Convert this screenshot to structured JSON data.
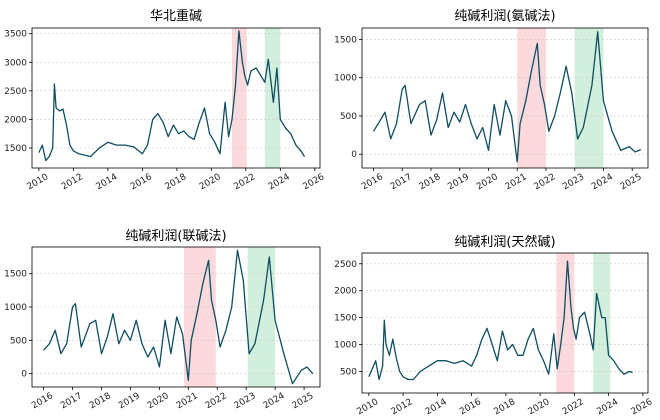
{
  "colors": {
    "series": "#0f4d63",
    "band_red": "#f9c9cf",
    "band_green": "#bfe8cf"
  },
  "chart_data": [
    {
      "type": "line",
      "title": "华北重碱",
      "xlim": [
        2009.6,
        2026.3
      ],
      "ylim": [
        1150,
        3600
      ],
      "xticks": [
        2010,
        2012,
        2014,
        2016,
        2018,
        2020,
        2022,
        2024,
        2026
      ],
      "yticks": [
        1500,
        2000,
        2500,
        3000,
        3500
      ],
      "grid": "y-dotted",
      "shaded_bands": [
        {
          "color": "red",
          "x": [
            2021.2,
            2022.05
          ]
        },
        {
          "color": "green",
          "x": [
            2023.1,
            2024.0
          ]
        }
      ],
      "series": [
        {
          "x": [
            2010.0,
            2010.2,
            2010.4,
            2010.6,
            2010.8,
            2010.9,
            2011.0,
            2011.2,
            2011.4,
            2011.6,
            2011.8,
            2012.0,
            2012.3,
            2012.6,
            2013.0,
            2013.5,
            2014.0,
            2014.5,
            2015.0,
            2015.5,
            2016.0,
            2016.3,
            2016.6,
            2016.9,
            2017.2,
            2017.5,
            2017.8,
            2018.1,
            2018.4,
            2018.7,
            2019.0,
            2019.3,
            2019.6,
            2019.9,
            2020.2,
            2020.5,
            2020.8,
            2021.0,
            2021.2,
            2021.4,
            2021.6,
            2021.8,
            2021.95,
            2022.1,
            2022.3,
            2022.6,
            2022.9,
            2023.1,
            2023.3,
            2023.6,
            2023.8,
            2024.0,
            2024.3,
            2024.6,
            2024.9,
            2025.2,
            2025.4
          ],
          "values": [
            1420,
            1550,
            1280,
            1350,
            1500,
            2620,
            2200,
            2150,
            2180,
            1900,
            1550,
            1450,
            1400,
            1380,
            1350,
            1500,
            1600,
            1550,
            1550,
            1520,
            1400,
            1550,
            2000,
            2100,
            1950,
            1700,
            1900,
            1750,
            1800,
            1700,
            1650,
            1950,
            2200,
            1750,
            1600,
            1400,
            2300,
            1700,
            2000,
            2600,
            3550,
            3000,
            2750,
            2600,
            2850,
            2900,
            2750,
            2650,
            3050,
            2300,
            2900,
            2000,
            1850,
            1750,
            1550,
            1450,
            1350
          ]
        }
      ]
    },
    {
      "type": "line",
      "title": "纯碱利润(氨碱法)",
      "xlim": [
        2015.6,
        2025.55
      ],
      "ylim": [
        -180,
        1650
      ],
      "xticks": [
        2016,
        2017,
        2018,
        2019,
        2020,
        2021,
        2022,
        2023,
        2024,
        2025
      ],
      "yticks": [
        0,
        500,
        1000,
        1500
      ],
      "grid": "y-dotted",
      "shaded_bands": [
        {
          "color": "red",
          "x": [
            2021.0,
            2022.0
          ]
        },
        {
          "color": "green",
          "x": [
            2023.0,
            2024.0
          ]
        }
      ],
      "series": [
        {
          "x": [
            2016.0,
            2016.2,
            2016.4,
            2016.6,
            2016.8,
            2017.0,
            2017.1,
            2017.3,
            2017.6,
            2017.8,
            2018.0,
            2018.2,
            2018.4,
            2018.6,
            2018.8,
            2019.0,
            2019.2,
            2019.4,
            2019.6,
            2019.8,
            2020.0,
            2020.2,
            2020.4,
            2020.6,
            2020.8,
            2021.0,
            2021.1,
            2021.3,
            2021.5,
            2021.7,
            2021.8,
            2021.95,
            2022.1,
            2022.3,
            2022.5,
            2022.7,
            2022.9,
            2023.1,
            2023.3,
            2023.6,
            2023.8,
            2024.0,
            2024.3,
            2024.6,
            2024.9,
            2025.1,
            2025.3
          ],
          "values": [
            300,
            420,
            550,
            200,
            400,
            850,
            900,
            400,
            650,
            700,
            250,
            450,
            800,
            350,
            550,
            420,
            650,
            400,
            200,
            350,
            50,
            650,
            250,
            700,
            500,
            -100,
            400,
            700,
            1100,
            1450,
            900,
            650,
            300,
            500,
            800,
            1150,
            800,
            200,
            350,
            900,
            1600,
            700,
            300,
            50,
            100,
            30,
            60
          ]
        }
      ]
    },
    {
      "type": "line",
      "title": "纯碱利润(联碱法)",
      "xlim": [
        2015.6,
        2025.55
      ],
      "ylim": [
        -200,
        1900
      ],
      "xticks": [
        2016,
        2017,
        2018,
        2019,
        2020,
        2021,
        2022,
        2023,
        2024,
        2025
      ],
      "yticks": [
        0,
        500,
        1000,
        1500
      ],
      "grid": "y-dotted",
      "shaded_bands": [
        {
          "color": "red",
          "x": [
            2020.85,
            2021.95
          ]
        },
        {
          "color": "green",
          "x": [
            2023.05,
            2024.0
          ]
        }
      ],
      "series": [
        {
          "x": [
            2016.0,
            2016.2,
            2016.4,
            2016.6,
            2016.8,
            2017.0,
            2017.1,
            2017.3,
            2017.6,
            2017.8,
            2018.0,
            2018.2,
            2018.4,
            2018.6,
            2018.8,
            2019.0,
            2019.2,
            2019.4,
            2019.6,
            2019.8,
            2020.0,
            2020.2,
            2020.4,
            2020.6,
            2020.8,
            2021.0,
            2021.1,
            2021.3,
            2021.5,
            2021.7,
            2021.8,
            2021.95,
            2022.1,
            2022.3,
            2022.5,
            2022.7,
            2022.9,
            2023.1,
            2023.3,
            2023.6,
            2023.8,
            2024.0,
            2024.3,
            2024.6,
            2024.9,
            2025.1,
            2025.3
          ],
          "values": [
            350,
            450,
            650,
            300,
            450,
            1000,
            1050,
            400,
            750,
            800,
            300,
            550,
            900,
            450,
            650,
            500,
            800,
            450,
            250,
            400,
            100,
            800,
            300,
            850,
            600,
            -100,
            500,
            900,
            1350,
            1700,
            1100,
            800,
            400,
            650,
            1000,
            1850,
            1400,
            300,
            450,
            1100,
            1750,
            800,
            300,
            -150,
            50,
            100,
            0
          ]
        }
      ]
    },
    {
      "type": "line",
      "title": "纯碱利润(天然碱)",
      "xlim": [
        2009.6,
        2026.3
      ],
      "ylim": [
        100,
        2700
      ],
      "xticks": [
        2010,
        2012,
        2014,
        2016,
        2018,
        2020,
        2022,
        2024,
        2026
      ],
      "yticks": [
        500,
        1000,
        1500,
        2000,
        2500
      ],
      "grid": "y-dotted",
      "shaded_bands": [
        {
          "color": "red",
          "x": [
            2020.95,
            2022.0
          ]
        },
        {
          "color": "green",
          "x": [
            2023.1,
            2024.1
          ]
        }
      ],
      "series": [
        {
          "x": [
            2010.0,
            2010.2,
            2010.4,
            2010.6,
            2010.8,
            2010.9,
            2011.0,
            2011.2,
            2011.4,
            2011.6,
            2011.8,
            2012.0,
            2012.3,
            2012.6,
            2013.0,
            2013.5,
            2014.0,
            2014.5,
            2015.0,
            2015.5,
            2016.0,
            2016.3,
            2016.6,
            2016.9,
            2017.2,
            2017.5,
            2017.8,
            2018.1,
            2018.4,
            2018.7,
            2019.0,
            2019.3,
            2019.6,
            2019.9,
            2020.2,
            2020.5,
            2020.8,
            2021.0,
            2021.2,
            2021.4,
            2021.6,
            2021.8,
            2021.95,
            2022.1,
            2022.3,
            2022.6,
            2022.9,
            2023.1,
            2023.3,
            2023.6,
            2023.8,
            2024.0,
            2024.3,
            2024.6,
            2024.9,
            2025.2,
            2025.4
          ],
          "values": [
            400,
            550,
            700,
            350,
            600,
            1450,
            1000,
            800,
            1100,
            750,
            500,
            400,
            350,
            350,
            500,
            600,
            700,
            700,
            650,
            700,
            600,
            800,
            1100,
            1300,
            1000,
            700,
            1250,
            900,
            1000,
            800,
            800,
            1100,
            1300,
            900,
            700,
            450,
            1200,
            550,
            1000,
            1500,
            2550,
            1700,
            1300,
            1100,
            1500,
            1600,
            1200,
            900,
            1950,
            1500,
            1500,
            800,
            700,
            550,
            450,
            500,
            480
          ]
        }
      ]
    }
  ]
}
